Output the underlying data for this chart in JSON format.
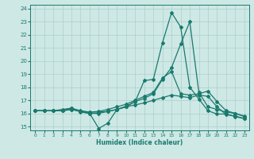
{
  "xlabel": "Humidex (Indice chaleur)",
  "background_color": "#cde8e5",
  "grid_color": "#aecfcc",
  "line_color": "#1a7a6e",
  "xlim": [
    -0.5,
    23.5
  ],
  "ylim": [
    14.7,
    24.3
  ],
  "yticks": [
    15,
    16,
    17,
    18,
    19,
    20,
    21,
    22,
    23,
    24
  ],
  "xticks": [
    0,
    1,
    2,
    3,
    4,
    5,
    6,
    7,
    8,
    9,
    10,
    11,
    12,
    13,
    14,
    15,
    16,
    17,
    18,
    19,
    20,
    21,
    22,
    23
  ],
  "lines": [
    {
      "x": [
        0,
        1,
        2,
        3,
        4,
        5,
        6,
        7,
        8,
        9,
        10,
        11,
        12,
        13,
        14,
        15,
        16,
        17,
        18,
        19,
        20,
        21,
        22,
        23
      ],
      "y": [
        16.2,
        16.2,
        16.2,
        16.2,
        16.4,
        16.1,
        16.0,
        14.85,
        15.25,
        16.3,
        16.5,
        16.9,
        18.5,
        18.6,
        21.4,
        23.7,
        22.6,
        18.0,
        17.1,
        16.2,
        15.95,
        15.95,
        15.75,
        15.6
      ]
    },
    {
      "x": [
        0,
        1,
        2,
        3,
        4,
        5,
        6,
        7,
        8,
        9,
        10,
        11,
        12,
        13,
        14,
        15,
        16,
        17,
        18,
        19,
        20,
        21,
        22,
        23
      ],
      "y": [
        16.2,
        16.2,
        16.2,
        16.2,
        16.3,
        16.15,
        16.1,
        16.1,
        16.15,
        16.3,
        16.55,
        16.9,
        17.15,
        17.5,
        18.6,
        19.5,
        21.3,
        23.0,
        17.6,
        16.5,
        16.3,
        16.1,
        16.0,
        15.75
      ]
    },
    {
      "x": [
        0,
        1,
        2,
        3,
        4,
        5,
        6,
        7,
        8,
        9,
        10,
        11,
        12,
        13,
        14,
        15,
        16,
        17,
        18,
        19,
        20,
        21,
        22,
        23
      ],
      "y": [
        16.2,
        16.2,
        16.2,
        16.3,
        16.4,
        16.2,
        16.1,
        16.15,
        16.3,
        16.5,
        16.7,
        17.0,
        17.3,
        17.6,
        18.7,
        19.2,
        17.5,
        17.4,
        17.5,
        17.7,
        16.9,
        16.2,
        16.0,
        15.8
      ]
    },
    {
      "x": [
        0,
        1,
        2,
        3,
        4,
        5,
        6,
        7,
        8,
        9,
        10,
        11,
        12,
        13,
        14,
        15,
        16,
        17,
        18,
        19,
        20,
        21,
        22,
        23
      ],
      "y": [
        16.2,
        16.2,
        16.2,
        16.2,
        16.3,
        16.15,
        16.0,
        16.0,
        16.15,
        16.3,
        16.5,
        16.65,
        16.8,
        17.0,
        17.2,
        17.4,
        17.3,
        17.2,
        17.4,
        17.3,
        16.5,
        15.9,
        15.8,
        15.6
      ]
    }
  ]
}
